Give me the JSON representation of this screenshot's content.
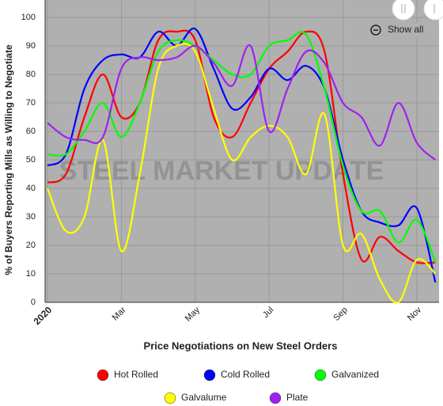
{
  "chart_data": {
    "type": "line",
    "x_label": "Price Negotiations on New Steel Orders",
    "y_label": "% of Buyers Reporting Mills as Willing to Negotiate",
    "watermark": "STEEL MARKET UPDATE",
    "button": "Show all",
    "categories": [
      "2020",
      null,
      null,
      null,
      "Mar",
      null,
      null,
      null,
      "May",
      null,
      null,
      null,
      "Jul",
      null,
      null,
      null,
      "Sep",
      null,
      null,
      null,
      "Nov",
      null
    ],
    "ylim": [
      0,
      100
    ],
    "yticks": [
      0,
      10,
      20,
      30,
      40,
      50,
      60,
      70,
      80,
      90,
      100
    ],
    "grid": true,
    "series": [
      {
        "name": "Hot Rolled",
        "color": "#ff0000",
        "values": [
          42,
          45,
          65,
          80,
          65,
          70,
          92,
          95,
          92,
          65,
          58,
          70,
          82,
          88,
          95,
          88,
          45,
          15,
          23,
          18,
          14,
          14
        ]
      },
      {
        "name": "Cold Rolled",
        "color": "#0000ff",
        "values": [
          48,
          52,
          75,
          85,
          87,
          86,
          95,
          90,
          96,
          82,
          68,
          72,
          82,
          78,
          83,
          75,
          50,
          32,
          28,
          27,
          33,
          7
        ]
      },
      {
        "name": "Galvanized",
        "color": "#00ff00",
        "values": [
          52,
          52,
          60,
          70,
          58,
          70,
          88,
          92,
          90,
          85,
          80,
          80,
          90,
          92,
          94,
          75,
          48,
          32,
          32,
          21,
          29,
          14
        ]
      },
      {
        "name": "Galvalume",
        "color": "#ffff00",
        "values": [
          40,
          25,
          30,
          57,
          18,
          45,
          82,
          90,
          88,
          68,
          50,
          58,
          62,
          58,
          45,
          66,
          20,
          24,
          8,
          0,
          15,
          10
        ]
      },
      {
        "name": "Plate",
        "color": "#a020f0",
        "values": [
          63,
          58,
          57,
          58,
          82,
          86,
          85,
          86,
          90,
          84,
          76,
          90,
          60,
          75,
          88,
          84,
          70,
          65,
          55,
          70,
          56,
          50
        ]
      }
    ]
  }
}
